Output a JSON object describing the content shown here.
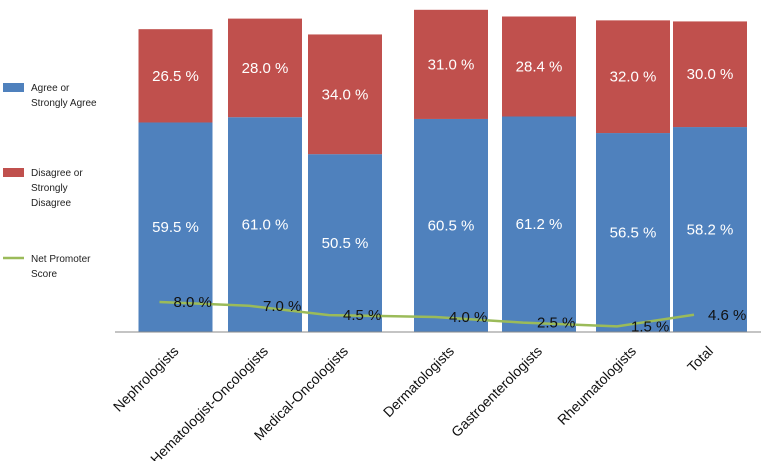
{
  "chart_data": {
    "type": "bar",
    "stacked": true,
    "categories": [
      "Nephrologists",
      "Hematologist-Oncologists",
      "Medical-Oncologists",
      "Dermatologists",
      "Gastroenterologists",
      "Rheumatologists",
      "Total"
    ],
    "series": [
      {
        "name": "Agree or Strongly Agree",
        "legend_lines": [
          "Agree or",
          "Strongly Agree"
        ],
        "color": "#4F81BD",
        "values": [
          59.5,
          61.0,
          50.5,
          60.5,
          61.2,
          56.5,
          58.2
        ],
        "labels": [
          "59.5 %",
          "61.0 %",
          "50.5 %",
          "60.5 %",
          "61.2 %",
          "56.5 %",
          "58.2 %"
        ]
      },
      {
        "name": "Disagree or Strongly Disagree",
        "legend_lines": [
          "Disagree or",
          "Strongly",
          "Disagree"
        ],
        "color": "#C0504D",
        "values": [
          26.5,
          28.0,
          34.0,
          31.0,
          28.4,
          32.0,
          30.0
        ],
        "labels": [
          "26.5 %",
          "28.0 %",
          "34.0 %",
          "31.0 %",
          "28.4 %",
          "32.0 %",
          "30.0 %"
        ]
      }
    ],
    "line_series": {
      "name": "Net Promoter Score",
      "legend_lines": [
        "Net Promoter",
        "Score"
      ],
      "color": "#9BBB59",
      "values": [
        8.0,
        7.0,
        4.5,
        4.0,
        2.5,
        1.5,
        4.6
      ],
      "labels": [
        "8.0 %",
        "7.0 %",
        "4.5 %",
        "4.0 %",
        "2.5 %",
        "1.5 %",
        "4.6 %"
      ]
    },
    "ylim": [
      0,
      94
    ],
    "title": "",
    "xlabel": "",
    "ylabel": "",
    "grid": false,
    "legend_position": "left"
  }
}
